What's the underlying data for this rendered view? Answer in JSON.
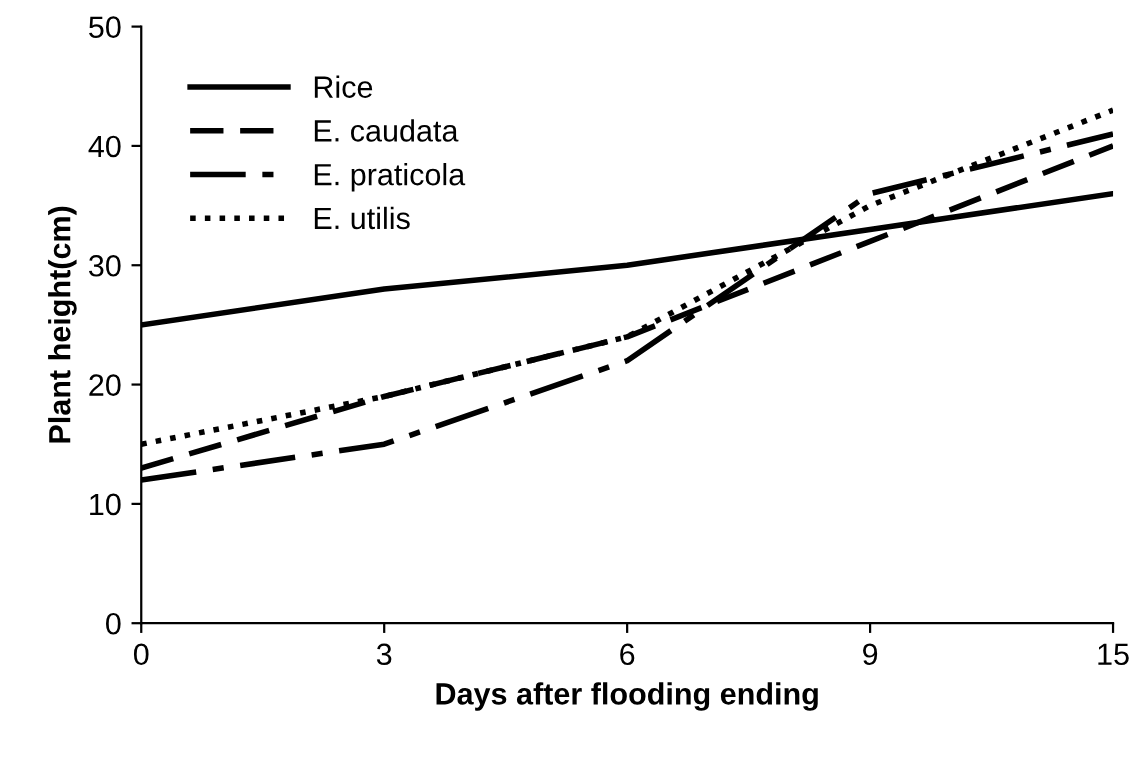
{
  "chart_data": {
    "type": "line",
    "xlabel": "Days after flooding ending",
    "ylabel": "Plant height(cm)",
    "categories": [
      "0",
      "3",
      "6",
      "9",
      "15"
    ],
    "series": [
      {
        "name": "Rice",
        "color": "#000000",
        "line_style": "solid",
        "values": [
          25,
          28,
          30,
          33,
          36
        ]
      },
      {
        "name": "E. caudata",
        "color": "#000000",
        "line_style": "dashed",
        "values": [
          13,
          19,
          24,
          32,
          40
        ]
      },
      {
        "name": "E. praticola",
        "color": "#000000",
        "line_style": "dashdot",
        "values": [
          12,
          15,
          22,
          36,
          41
        ]
      },
      {
        "name": "E. utilis",
        "color": "#000000",
        "line_style": "dotted",
        "values": [
          15,
          19,
          24,
          35,
          43
        ]
      }
    ],
    "ylim": [
      0,
      50
    ],
    "yticks": [
      0,
      10,
      20,
      30,
      40,
      50
    ],
    "grid": false,
    "legend": "top left",
    "marker": "none"
  }
}
